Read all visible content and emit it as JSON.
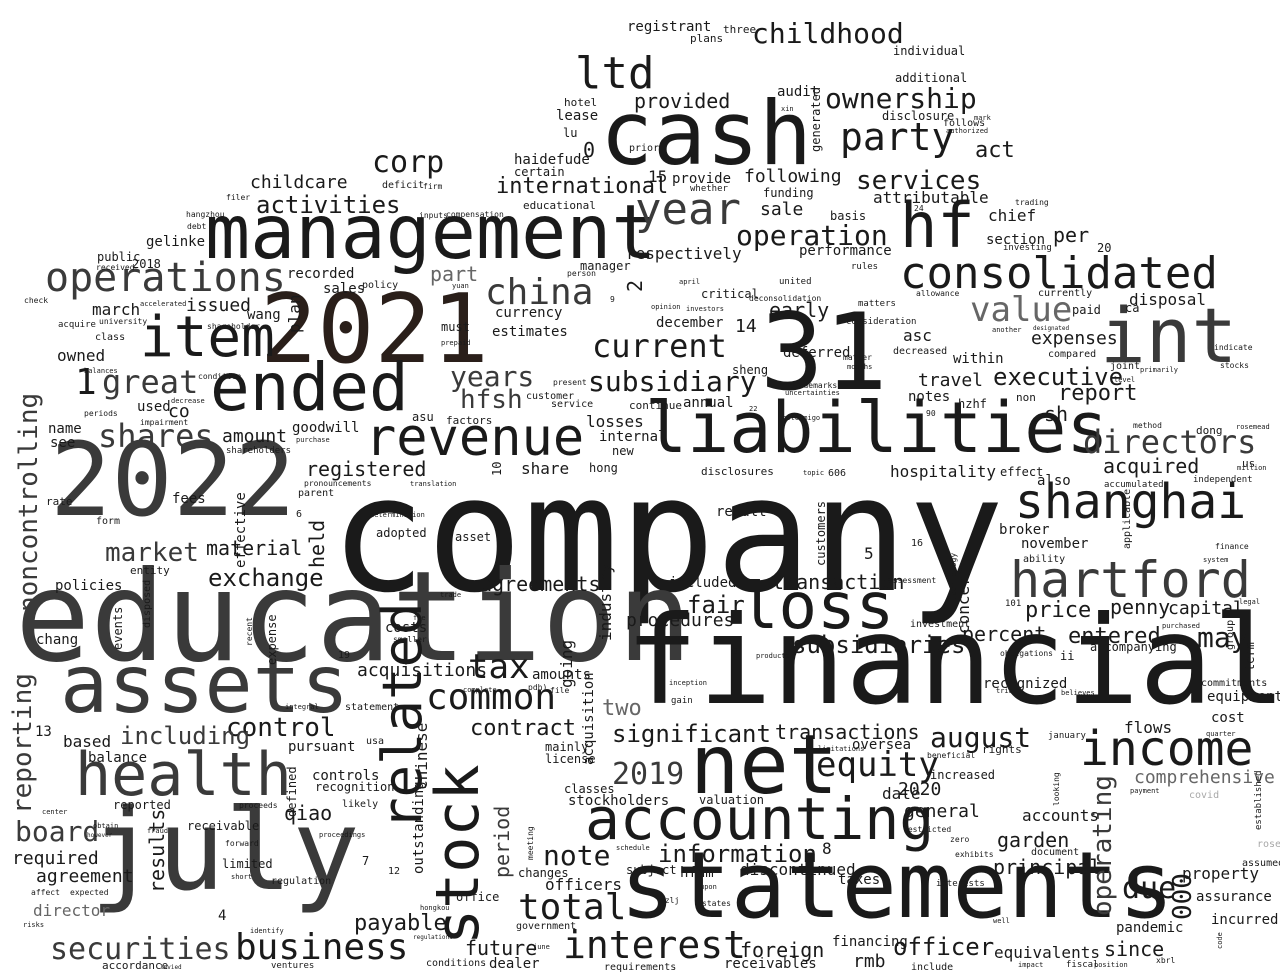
{
  "colors": {
    "background": "#ffffff",
    "ink_dark": "#1a1a1a",
    "ink_mid": "#3a3a3a",
    "ink_grey": "#666666",
    "ink_light": "#a8a8a8",
    "ink_brown": "#2a1f1a"
  },
  "words": {
    "company": "company",
    "education": "education",
    "financial": "financial",
    "y2022": "2022",
    "july": "july",
    "statements": "statements",
    "management": "management",
    "cash": "cash",
    "n31": "31",
    "y2021": "2021",
    "liabilities": "liabilities",
    "int": "int",
    "assets": "assets",
    "net": "net",
    "accounting": "accounting",
    "health": "health",
    "stock": "stock",
    "ended": "ended",
    "item": "item",
    "consolidated": "consolidated",
    "hartford": "hartford",
    "shanghai": "shanghai",
    "revenue": "revenue",
    "loss": "loss",
    "income": "income",
    "related": "related",
    "hf": "hf",
    "operations": "operations",
    "year": "year",
    "noncontrolling": "noncontrolling",
    "ltd": "ltd",
    "party": "party",
    "ownership": "ownership",
    "childhood": "childhood",
    "corp": "corp",
    "china": "china",
    "current": "current",
    "subsidiary": "subsidiary",
    "directors": "directors",
    "value": "value",
    "equity": "equity",
    "total": "total",
    "interest": "interest",
    "business": "business",
    "securities": "securities",
    "tax": "tax",
    "common": "common",
    "control": "control",
    "reporting": "reporting",
    "board": "board",
    "great": "great",
    "shares": "shares",
    "years": "years",
    "hfsh": "hfsh",
    "market": "market",
    "exchange": "exchange",
    "services": "services",
    "operation": "operation",
    "activities": "activities",
    "international": "international",
    "following": "following",
    "provided": "provided",
    "results": "results",
    "period": "period",
    "note": "note",
    "information": "information",
    "significant": "significant",
    "y2019": "2019",
    "including": "including",
    "subsidiaries": "subsidiaries",
    "transactions": "transactions",
    "august": "august",
    "operating": "operating",
    "due": "due",
    "ooo": "000",
    "may": "may",
    "fair": "fair",
    "price": "price",
    "executive": "executive",
    "expenses": "expenses",
    "report": "report",
    "held": "held",
    "registered": "registered",
    "material": "material",
    "agreements": "agreements",
    "transaction": "transaction",
    "penny": "penny",
    "capital": "capital",
    "entered": "entered",
    "acquired": "acquired",
    "percent": "percent",
    "industry": "industry",
    "procedures": "procedures",
    "contract": "contract",
    "two": "two",
    "acquisitions": "acquisitions",
    "amounts": "amounts",
    "payable": "payable",
    "officer": "officer",
    "foreign": "foreign",
    "future": "future",
    "dealer": "dealer",
    "receivables": "receivables",
    "rmb": "rmb",
    "financing": "financing",
    "equivalents": "equivalents",
    "since": "since",
    "pandemic": "pandemic",
    "incurred": "incurred",
    "assurance": "assurance",
    "property": "property",
    "principal": "principal",
    "garden": "garden",
    "accounts": "accounts",
    "general": "general",
    "y2020": "2020",
    "date": "date",
    "comprehensive": "comprehensive",
    "flows": "flows",
    "cost": "cost",
    "equipment": "equipment",
    "hospitality": "hospitality",
    "travel": "travel",
    "notes": "notes",
    "sh": "sh",
    "disposal": "disposal",
    "per": "per",
    "section": "section",
    "chief": "chief",
    "attributable": "attributable",
    "act": "act",
    "audit": "audit",
    "disclosure": "disclosure",
    "additional": "additional",
    "individual": "individual",
    "registrant": "registrant",
    "plans": "plans",
    "three": "three",
    "performance": "performance",
    "early": "early",
    "deferred": "deferred",
    "asc": "asc",
    "within": "within",
    "sale": "sale",
    "respectively": "respectively",
    "december": "december",
    "currency": "currency",
    "estimates": "estimates",
    "part": "part",
    "recorded": "recorded",
    "sales": "sales",
    "march": "march",
    "issued": "issued",
    "co": "co",
    "used": "used",
    "owned": "owned",
    "name": "name",
    "see": "see",
    "amount": "amount",
    "goodwill": "goodwill",
    "fees": "fees",
    "childcare": "childcare",
    "gelinke": "gelinke",
    "lease": "lease",
    "hotel": "hotel",
    "haidefude": "haidefude",
    "certain": "certain",
    "educational": "educational",
    "losses": "losses",
    "internal": "internal",
    "share": "share",
    "hong": "hong",
    "new": "new",
    "annual": "annual",
    "disclosures": "disclosures",
    "result": "result",
    "included": "included",
    "concern": "concern",
    "broker": "broker",
    "november": "november",
    "also": "also",
    "recognized": "recognized",
    "going": "going",
    "acquisition": "acquisition",
    "based": "based",
    "balance": "balance",
    "pursuant": "pursuant",
    "controls": "controls",
    "recognition": "recognition",
    "qiao": "qiao",
    "chinese": "chinese",
    "outstanding": "outstanding",
    "required": "required",
    "agreement": "agreement",
    "director": "director",
    "reported": "reported",
    "receivable": "receivable",
    "limited": "limited",
    "regulation": "regulation",
    "stockholders": "stockholders",
    "valuation": "valuation",
    "mainly": "mainly",
    "license": "license",
    "classes": "classes",
    "subject": "subject",
    "officers": "officers",
    "hfhm": "hfhm",
    "changes": "changes",
    "discontinued": "discontinued",
    "taxes": "taxes",
    "oversea": "oversea",
    "increased": "increased",
    "rights": "rights",
    "beneficial": "beneficial",
    "accompanying": "accompanying",
    "commitments": "commitments",
    "hzhf": "hzhf",
    "term": "term",
    "assumed": "assumed",
    "established": "established",
    "covid": "covid",
    "policies": "policies",
    "chang": "chang",
    "costs": "costs",
    "adopted": "adopted",
    "asset": "asset",
    "provide": "provide",
    "prior": "prior",
    "lu": "lu",
    "public": "public",
    "y2018": "2018",
    "wang": "wang",
    "plan": "plan",
    "must": "must",
    "policy": "policy",
    "manager": "manager",
    "critical": "critical",
    "funding": "funding",
    "generated": "generated",
    "basis": "basis",
    "two_digit_20": "20",
    "paid": "paid",
    "currently": "currently",
    "ca": "ca",
    "non": "non",
    "us": "us",
    "dong": "dong",
    "independent": "independent",
    "effect": "effect",
    "accumulated": "accumulated",
    "ability": "ability",
    "finance": "finance",
    "rate": "rate",
    "form": "form",
    "parent": "parent",
    "effective": "effective",
    "entity": "entity",
    "disposed": "disposed",
    "events": "events",
    "expense": "expense",
    "investment": "investment",
    "assessment": "assessment",
    "customers": "customers",
    "ii": "ii",
    "obligations": "obligations",
    "office": "office",
    "government": "government",
    "conditions": "conditions",
    "requirements": "requirements",
    "include": "include",
    "fiscal": "fiscal",
    "accordance": "accordance",
    "ventures": "ventures",
    "statement": "statement",
    "usa": "usa",
    "likely": "likely",
    "proceeds": "proceeds",
    "document": "document",
    "january": "january",
    "restricted": "restricted",
    "exhibits": "exhibits",
    "interests": "interests",
    "zero": "zero",
    "compared": "compared",
    "joint": "joint",
    "trademarks": "trademarks",
    "uncertainties": "uncertainties",
    "customer": "customer",
    "service": "service",
    "continue": "continue",
    "sheng": "sheng",
    "matters": "matters",
    "consideration": "consideration",
    "decreased": "decreased",
    "united": "united",
    "deconsolidation": "deconsolidation",
    "investors": "investors",
    "opinion": "opinion",
    "rules": "rules",
    "allowance": "allowance",
    "investing": "investing",
    "trading": "trading",
    "follows": "follows",
    "authorized": "authorized",
    "mark": "mark",
    "n0": "0",
    "n15": "15",
    "n14": "14",
    "n2": "2",
    "n1": "1",
    "n5": "5",
    "n10": "10",
    "n4": "4",
    "n7": "7",
    "n8": "8",
    "n6": "6",
    "n12": "12",
    "n16": "16",
    "n13": "13",
    "n19": "19",
    "n101": "101",
    "n606": "606",
    "n90": "90",
    "n22": "22",
    "n24": "24",
    "n3": "3",
    "n9": "9",
    "asu": "asu",
    "factors": "factors",
    "impairment": "impairment",
    "class": "class",
    "university": "university",
    "shareholder": "shareholder",
    "acquire": "acquire",
    "check": "check",
    "accelerated": "accelerated",
    "deficit": "deficit",
    "filer": "filer",
    "hangzhou": "hangzhou",
    "debt": "debt",
    "received": "received",
    "inputs": "inputs",
    "compensation": "compensation",
    "firm": "firm",
    "whether": "whether",
    "april": "april",
    "sheet": "sheet",
    "person": "person",
    "yuan": "yuan",
    "prepaid": "prepaid",
    "condition": "condition",
    "balances": "balances",
    "present": "present",
    "decrease": "decrease",
    "periods": "periods",
    "shareholders": "shareholders",
    "purchase": "purchase",
    "pronouncements": "pronouncements",
    "determination": "determination",
    "pdh": "pdh)",
    "file": "file",
    "trade": "trade",
    "fee": "fee",
    "smaller": "smaller",
    "recent": "recent",
    "complete": "complete",
    "integral": "integral",
    "inception": "inception",
    "gain": "gain",
    "limitations": "limitations",
    "products": "products",
    "topic": "topic",
    "photoamigo": "photoamigo",
    "matter": "matter",
    "months": "months",
    "primarily": "primarily",
    "level": "level",
    "indicate": "indicate",
    "stocks": "stocks",
    "method": "method",
    "rosemead": "rosemead",
    "million": "million",
    "another": "another",
    "designated": "designated",
    "system": "system",
    "legal": "legal",
    "applicable": "applicable",
    "technology": "technology",
    "purchased": "purchased",
    "group": "group",
    "quarter": "quarter",
    "believes": "believes",
    "looking": "looking",
    "payment": "payment",
    "trial": "trial",
    "xbrl": "xbrl",
    "position": "position",
    "impact": "impact",
    "well": "well",
    "code": "code",
    "rose": "rose",
    "identify": "identify",
    "short": "short",
    "states": "states",
    "upon": "upon",
    "hzlj": "hzlj",
    "june": "june",
    "schedule": "schedule",
    "meeting": "meeting",
    "forward": "forward",
    "center": "center",
    "affect": "affect",
    "expected": "expected",
    "proceedings": "proceedings",
    "fraud": "fraud",
    "obtain": "obtain",
    "however": "however",
    "hongkou": "hongkou",
    "regulations": "regulations",
    "levied": "levied",
    "risks": "risks",
    "translation": "translation",
    "mark_m": "mark",
    "xin": "xin",
    "defined": "defined"
  }
}
